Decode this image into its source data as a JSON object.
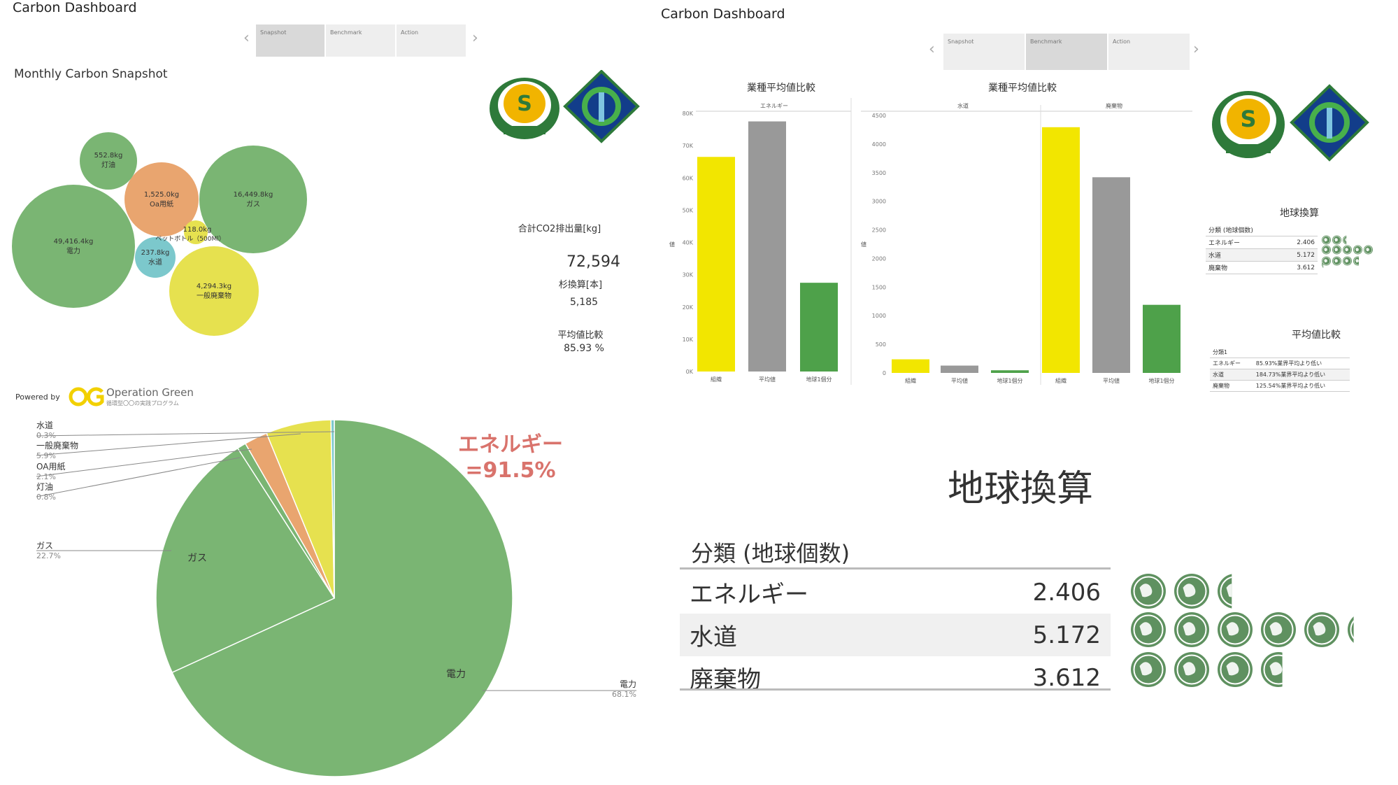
{
  "left": {
    "title": "Carbon Dashboard",
    "tabs": [
      {
        "label": "Snapshot",
        "active": true
      },
      {
        "label": "Benchmark",
        "active": false
      },
      {
        "label": "Action",
        "active": false
      }
    ],
    "subtitle": "Monthly Carbon Snapshot",
    "kpis": {
      "total_label": "合計CO2排出量[kg]",
      "total_value": "72,594",
      "cedar_label": "杉換算[本]",
      "cedar_value": "5,185",
      "avg_label": "平均値比較",
      "avg_value": "85.93 %"
    },
    "powered_by": "Powered by",
    "brand_name": "Operation Green",
    "brand_sub": "循環型〇〇の実践プログラム"
  },
  "right": {
    "title": "Carbon Dashboard",
    "tabs": [
      {
        "label": "Snapshot",
        "active": false
      },
      {
        "label": "Benchmark",
        "active": true
      },
      {
        "label": "Action",
        "active": false
      }
    ],
    "earth_title": "地球換算",
    "earth_header": "分類 (地球個数)",
    "earth_rows": [
      {
        "label": "エネルギー",
        "value": "2.406",
        "globes": 2.406
      },
      {
        "label": "水道",
        "value": "5.172",
        "globes": 5.172
      },
      {
        "label": "廃棄物",
        "value": "3.612",
        "globes": 3.612
      }
    ],
    "avg_title": "平均値比較",
    "avg_header": "分類1",
    "avg_rows": [
      {
        "label": "エネルギー",
        "value": "85.93%業界平均より低い"
      },
      {
        "label": "水道",
        "value": "184.73%業界平均より低い"
      },
      {
        "label": "廃棄物",
        "value": "125.54%業界平均より低い"
      }
    ]
  },
  "big_earth": {
    "title": "地球換算",
    "header": "分類 (地球個数)",
    "rows": [
      {
        "label": "エネルギー",
        "value": "2.406",
        "globes": 2.406
      },
      {
        "label": "水道",
        "value": "5.172",
        "globes": 5.172
      },
      {
        "label": "廃棄物",
        "value": "3.612",
        "globes": 3.612
      }
    ]
  },
  "callout": {
    "line1": "エネルギー",
    "line2": "=91.5%"
  },
  "colors": {
    "green": "#7ab573",
    "orange": "#e9a56f",
    "yellow": "#e6e14f",
    "teal": "#7cc8cc",
    "bar_yellow": "#f2e600",
    "bar_gray": "#999999",
    "bar_green": "#4ea14a",
    "globe": "#5f9160",
    "callout": "#d9736c"
  },
  "chart_data": [
    {
      "type": "bubble",
      "items": [
        {
          "label": "電力",
          "value_text": "49,416.4kg",
          "value": 49416.4,
          "color": "green"
        },
        {
          "label": "ガス",
          "value_text": "16,449.8kg",
          "value": 16449.8,
          "color": "green"
        },
        {
          "label": "一般廃棄物",
          "value_text": "4,294.3kg",
          "value": 4294.3,
          "color": "yellow"
        },
        {
          "label": "Oa用紙",
          "value_text": "1,525.0kg",
          "value": 1525.0,
          "color": "orange"
        },
        {
          "label": "灯油",
          "value_text": "552.8kg",
          "value": 552.8,
          "color": "green"
        },
        {
          "label": "水道",
          "value_text": "237.8kg",
          "value": 237.8,
          "color": "teal"
        },
        {
          "label": "ペットボトル（500Ml）",
          "value_text": "118.0kg",
          "value": 118.0,
          "color": "yellow"
        }
      ]
    },
    {
      "type": "bar",
      "title": "業種平均値比較",
      "panel": "エネルギー",
      "categories": [
        "組織",
        "平均値",
        "地球1個分"
      ],
      "values": [
        66500,
        77500,
        27500
      ],
      "ylim": [
        0,
        80000
      ],
      "yticks": [
        "0K",
        "10K",
        "20K",
        "30K",
        "40K",
        "50K",
        "60K",
        "70K",
        "80K"
      ],
      "ylabel": "値"
    },
    {
      "type": "bar",
      "title": "業種平均値比較",
      "panels": [
        "水道",
        "廃棄物"
      ],
      "categories": [
        "組織",
        "平均値",
        "地球1個分"
      ],
      "series": [
        {
          "panel": "水道",
          "values": [
            237.8,
            128,
            46
          ]
        },
        {
          "panel": "廃棄物",
          "values": [
            4294.3,
            3420,
            1190
          ]
        }
      ],
      "ylim": [
        0,
        4500
      ],
      "yticks": [
        "0",
        "500",
        "1000",
        "1500",
        "2000",
        "2500",
        "3000",
        "3500",
        "4000",
        "4500"
      ],
      "ylabel": "値"
    },
    {
      "type": "pie",
      "slices": [
        {
          "label": "電力",
          "percent": "68.1%",
          "value": 68.1,
          "color": "green"
        },
        {
          "label": "ガス",
          "percent": "22.7%",
          "value": 22.7,
          "color": "green"
        },
        {
          "label": "灯油",
          "percent": "0.8%",
          "value": 0.8,
          "color": "green"
        },
        {
          "label": "OA用紙",
          "percent": "2.1%",
          "value": 2.1,
          "color": "orange"
        },
        {
          "label": "一般廃棄物",
          "percent": "5.9%",
          "value": 5.9,
          "color": "yellow"
        },
        {
          "label": "水道",
          "percent": "0.3%",
          "value": 0.3,
          "color": "teal"
        }
      ]
    }
  ]
}
